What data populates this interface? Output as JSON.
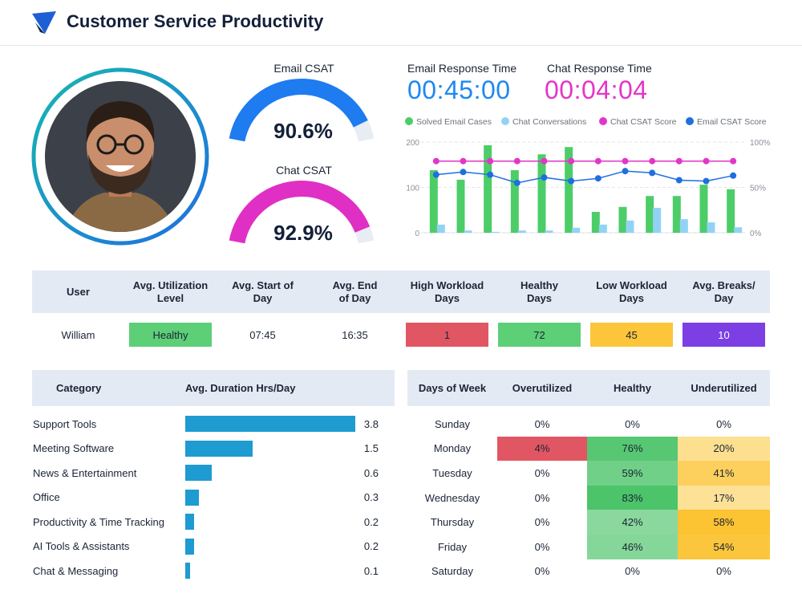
{
  "header": {
    "title": "Customer Service Productivity"
  },
  "gauges": [
    {
      "label": "Email CSAT",
      "value": 90.6,
      "value_label": "90.6%",
      "color": "#1e7bf0",
      "lim": [
        0,
        100
      ]
    },
    {
      "label": "Chat CSAT",
      "value": 92.9,
      "value_label": "92.9%",
      "color": "#e02fc4",
      "lim": [
        0,
        100
      ]
    }
  ],
  "response_times": [
    {
      "label": "Email Response Time",
      "value": "00:45:00",
      "color": "#1e88f0"
    },
    {
      "label": "Chat Response Time",
      "value": "00:04:04",
      "color": "#e535c8"
    }
  ],
  "chart_data": {
    "type": "bar",
    "categories": [
      null,
      null,
      null,
      null,
      null,
      null,
      null,
      null,
      null,
      null,
      null,
      null
    ],
    "series": [
      {
        "name": "Solved Email Cases",
        "type": "bar",
        "color": "#4ccd68",
        "values": [
          138,
          117,
          193,
          138,
          173,
          189,
          46,
          57,
          81,
          81,
          106,
          96
        ]
      },
      {
        "name": "Chat Conversations",
        "type": "bar",
        "color": "#92d3f5",
        "values": [
          18,
          5,
          2,
          5,
          5,
          11,
          18,
          27,
          55,
          30,
          23,
          12
        ]
      },
      {
        "name": "Chat CSAT Score",
        "type": "line",
        "axis": "y2",
        "color": "#e236c8",
        "values": [
          79,
          79,
          79,
          79,
          79,
          79,
          79,
          79,
          79,
          79,
          79,
          79
        ]
      },
      {
        "name": "Email CSAT Score",
        "type": "line",
        "axis": "y2",
        "color": "#1f6fe0",
        "values": [
          64,
          67,
          64,
          55,
          61,
          57,
          60,
          68,
          66,
          58,
          57,
          63
        ]
      }
    ],
    "ylim": [
      0,
      200
    ],
    "yticks": [
      0,
      100,
      200
    ],
    "y2lim": [
      0,
      100
    ],
    "y2ticks": [
      {
        "value": 0,
        "label": "0%"
      },
      {
        "value": 50,
        "label": "50%"
      },
      {
        "value": 100,
        "label": "100%"
      }
    ],
    "grid": true
  },
  "user_table": {
    "headers": [
      "User",
      "Avg. Utilization Level",
      "Avg. Start of Day",
      "Avg. End of Day",
      "High Workload Days",
      "Healthy Days",
      "Low Workload Days",
      "Avg. Breaks/ Day"
    ],
    "rows": [
      [
        "William",
        "Healthy",
        "07:45",
        "16:35",
        1,
        72,
        45,
        10
      ]
    ]
  },
  "category_table": {
    "headers": [
      "Category",
      "Avg. Duration Hrs/Day"
    ],
    "color": "#1e9bd0",
    "rows": [
      {
        "name": "Support Tools",
        "value": 3.8
      },
      {
        "name": "Meeting Software",
        "value": 1.5
      },
      {
        "name": "News & Entertainment",
        "value": 0.6
      },
      {
        "name": "Office",
        "value": 0.3
      },
      {
        "name": "Productivity & Time Tracking",
        "value": 0.2
      },
      {
        "name": "AI Tools & Assistants",
        "value": 0.2
      },
      {
        "name": "Chat & Messaging",
        "value": 0.1
      }
    ]
  },
  "heatmap": {
    "headers": [
      "Days of Week",
      "Overutilized",
      "Healthy",
      "Underutilized"
    ],
    "colors": [
      "#e15663",
      "#4cc46a",
      "#fcc332"
    ],
    "rows": [
      {
        "day": "Sunday",
        "values": [
          0,
          0,
          0
        ],
        "value_labels": [
          "0%",
          "0%",
          "0%"
        ]
      },
      {
        "day": "Monday",
        "values": [
          4,
          76,
          20
        ],
        "value_labels": [
          "4%",
          "76%",
          "20%"
        ]
      },
      {
        "day": "Tuesday",
        "values": [
          0,
          59,
          41
        ],
        "value_labels": [
          "0%",
          "59%",
          "41%"
        ]
      },
      {
        "day": "Wednesday",
        "values": [
          0,
          83,
          17
        ],
        "value_labels": [
          "0%",
          "83%",
          "17%"
        ]
      },
      {
        "day": "Thursday",
        "values": [
          0,
          42,
          58
        ],
        "value_labels": [
          "0%",
          "42%",
          "58%"
        ]
      },
      {
        "day": "Friday",
        "values": [
          0,
          46,
          54
        ],
        "value_labels": [
          "0%",
          "46%",
          "54%"
        ]
      },
      {
        "day": "Saturday",
        "values": [
          0,
          0,
          0
        ],
        "value_labels": [
          "0%",
          "0%",
          "0%"
        ]
      }
    ]
  }
}
